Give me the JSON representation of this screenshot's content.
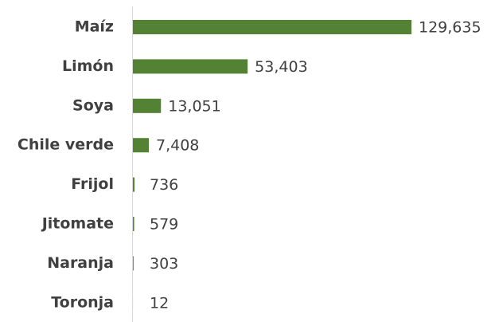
{
  "chart_data": {
    "type": "bar",
    "orientation": "horizontal",
    "categories": [
      "Maíz",
      "Limón",
      "Soya",
      "Chile verde",
      "Frijol",
      "Jitomate",
      "Naranja",
      "Toronja"
    ],
    "values": [
      129635,
      53403,
      13051,
      7408,
      736,
      579,
      303,
      12
    ],
    "value_labels": [
      "129,635",
      "53,403",
      "13,051",
      "7,408",
      "736",
      "579",
      "303",
      "12"
    ],
    "color": "#548235"
  }
}
